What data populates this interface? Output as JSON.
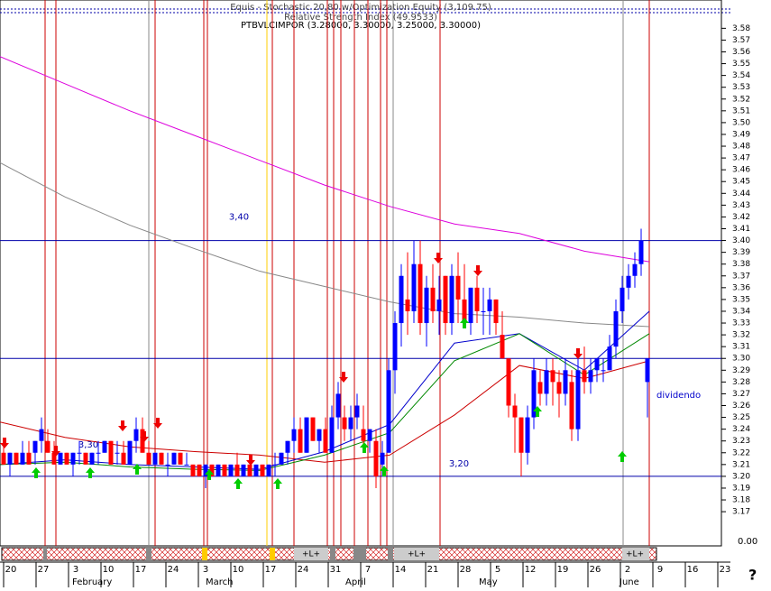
{
  "chart_data": {
    "type": "candlestick",
    "title": "Equis - Stochastic 20,80  w/Optimization Equity (3,109.75)",
    "subtitle": "Relative Strength Index (49.9533)",
    "symbol_label": "PTBVLCIMPOR (3.28000, 3.30000, 3.25000, 3.30000)",
    "ylim": [
      3.141,
      3.604
    ],
    "yticks": [
      3.58,
      3.57,
      3.56,
      3.55,
      3.54,
      3.53,
      3.52,
      3.51,
      {
        "value": 3.5,
        "label": "3.50"
      },
      3.49,
      3.48,
      3.47,
      3.46,
      3.45,
      3.44,
      3.43,
      3.42,
      3.41,
      {
        "value": 3.4,
        "label": "3.40"
      },
      3.39,
      3.38,
      3.37,
      3.36,
      3.35,
      3.34,
      3.33,
      3.32,
      3.31,
      {
        "value": 3.3,
        "label": "3.30"
      },
      3.29,
      3.28,
      3.27,
      3.26,
      3.25,
      3.24,
      3.23,
      3.22,
      3.21,
      {
        "value": 3.2,
        "label": "3.20"
      },
      3.19,
      3.18,
      3.17
    ],
    "levels": [
      {
        "value": 3.4,
        "label": "3,40"
      },
      {
        "value": 3.3,
        "label": "3,30"
      },
      {
        "value": 3.2,
        "label": "3,20"
      }
    ],
    "annotation": "dividendo",
    "indicator_label": "0.00",
    "help_label": "?",
    "signal_labels": [
      "+L+",
      "+L+",
      "+L+"
    ],
    "week_labels": [
      "20",
      "27",
      "3",
      "10",
      "17",
      "24",
      "3",
      "10",
      "17",
      "24",
      "31",
      "7",
      "14",
      "21",
      "28",
      "5",
      "12",
      "19",
      "26",
      "2",
      "9",
      "16",
      "23"
    ],
    "months": [
      "February",
      "March",
      "April",
      "May",
      "June"
    ],
    "up_color": "#0000ff",
    "down_color": "#ff0000",
    "ohlc": [
      [
        3.22,
        3.23,
        3.21,
        3.21
      ],
      [
        3.21,
        3.22,
        3.2,
        3.22
      ],
      [
        3.22,
        3.22,
        3.21,
        3.21
      ],
      [
        3.21,
        3.23,
        3.21,
        3.22
      ],
      [
        3.22,
        3.23,
        3.21,
        3.21
      ],
      [
        3.22,
        3.23,
        3.21,
        3.23
      ],
      [
        3.23,
        3.25,
        3.22,
        3.24
      ],
      [
        3.23,
        3.24,
        3.22,
        3.22
      ],
      [
        3.22,
        3.23,
        3.21,
        3.21
      ],
      [
        3.21,
        3.22,
        3.21,
        3.22
      ],
      [
        3.22,
        3.22,
        3.21,
        3.21
      ],
      [
        3.21,
        3.22,
        3.2,
        3.22
      ],
      [
        3.22,
        3.23,
        3.21,
        3.22
      ],
      [
        3.22,
        3.22,
        3.21,
        3.21
      ],
      [
        3.21,
        3.22,
        3.21,
        3.22
      ],
      [
        3.22,
        3.23,
        3.21,
        3.22
      ],
      [
        3.22,
        3.23,
        3.22,
        3.23
      ],
      [
        3.23,
        3.23,
        3.21,
        3.21
      ],
      [
        3.22,
        3.23,
        3.21,
        3.22
      ],
      [
        3.22,
        3.23,
        3.21,
        3.21
      ],
      [
        3.21,
        3.23,
        3.21,
        3.23
      ],
      [
        3.23,
        3.25,
        3.22,
        3.24
      ],
      [
        3.24,
        3.25,
        3.22,
        3.22
      ],
      [
        3.22,
        3.23,
        3.21,
        3.21
      ],
      [
        3.21,
        3.22,
        3.21,
        3.22
      ],
      [
        3.22,
        3.22,
        3.21,
        3.21
      ],
      [
        3.21,
        3.22,
        3.2,
        3.21
      ],
      [
        3.21,
        3.22,
        3.21,
        3.22
      ],
      [
        3.22,
        3.22,
        3.21,
        3.21
      ],
      [
        3.21,
        3.22,
        3.21,
        3.21
      ],
      [
        3.21,
        3.21,
        3.2,
        3.2
      ],
      [
        3.21,
        3.21,
        3.2,
        3.2
      ],
      [
        3.2,
        3.21,
        3.19,
        3.21
      ],
      [
        3.21,
        3.21,
        3.2,
        3.2
      ],
      [
        3.2,
        3.21,
        3.2,
        3.21
      ],
      [
        3.21,
        3.21,
        3.2,
        3.2
      ],
      [
        3.2,
        3.21,
        3.2,
        3.21
      ],
      [
        3.21,
        3.22,
        3.2,
        3.2
      ],
      [
        3.2,
        3.21,
        3.2,
        3.21
      ],
      [
        3.21,
        3.21,
        3.2,
        3.2
      ],
      [
        3.2,
        3.21,
        3.2,
        3.21
      ],
      [
        3.21,
        3.21,
        3.2,
        3.2
      ],
      [
        3.2,
        3.21,
        3.2,
        3.21
      ],
      [
        3.21,
        3.22,
        3.2,
        3.21
      ],
      [
        3.21,
        3.22,
        3.21,
        3.22
      ],
      [
        3.22,
        3.23,
        3.21,
        3.23
      ],
      [
        3.23,
        3.25,
        3.22,
        3.24
      ],
      [
        3.24,
        3.25,
        3.22,
        3.22
      ],
      [
        3.22,
        3.25,
        3.22,
        3.25
      ],
      [
        3.25,
        3.25,
        3.23,
        3.23
      ],
      [
        3.23,
        3.24,
        3.22,
        3.24
      ],
      [
        3.24,
        3.25,
        3.22,
        3.22
      ],
      [
        3.22,
        3.26,
        3.22,
        3.25
      ],
      [
        3.25,
        3.28,
        3.24,
        3.27
      ],
      [
        3.25,
        3.26,
        3.23,
        3.24
      ],
      [
        3.24,
        3.26,
        3.23,
        3.25
      ],
      [
        3.25,
        3.27,
        3.24,
        3.26
      ],
      [
        3.24,
        3.26,
        3.22,
        3.23
      ],
      [
        3.23,
        3.24,
        3.22,
        3.24
      ],
      [
        3.23,
        3.24,
        3.19,
        3.2
      ],
      [
        3.21,
        3.23,
        3.2,
        3.22
      ],
      [
        3.22,
        3.3,
        3.22,
        3.29
      ],
      [
        3.29,
        3.34,
        3.27,
        3.33
      ],
      [
        3.33,
        3.38,
        3.31,
        3.37
      ],
      [
        3.35,
        3.39,
        3.32,
        3.34
      ],
      [
        3.34,
        3.4,
        3.33,
        3.38
      ],
      [
        3.38,
        3.4,
        3.32,
        3.33
      ],
      [
        3.33,
        3.37,
        3.31,
        3.36
      ],
      [
        3.36,
        3.38,
        3.33,
        3.34
      ],
      [
        3.34,
        3.37,
        3.32,
        3.35
      ],
      [
        3.37,
        3.37,
        3.32,
        3.33
      ],
      [
        3.33,
        3.38,
        3.32,
        3.37
      ],
      [
        3.37,
        3.39,
        3.33,
        3.35
      ],
      [
        3.35,
        3.38,
        3.33,
        3.33
      ],
      [
        3.33,
        3.36,
        3.32,
        3.36
      ],
      [
        3.36,
        3.37,
        3.33,
        3.34
      ],
      [
        3.34,
        3.36,
        3.32,
        3.34
      ],
      [
        3.34,
        3.36,
        3.32,
        3.35
      ],
      [
        3.35,
        3.35,
        3.32,
        3.33
      ],
      [
        3.32,
        3.34,
        3.3,
        3.3
      ],
      [
        3.3,
        3.3,
        3.25,
        3.26
      ],
      [
        3.26,
        3.27,
        3.22,
        3.25
      ],
      [
        3.25,
        3.25,
        3.2,
        3.22
      ],
      [
        3.22,
        3.26,
        3.21,
        3.25
      ],
      [
        3.25,
        3.3,
        3.24,
        3.29
      ],
      [
        3.28,
        3.29,
        3.26,
        3.27
      ],
      [
        3.27,
        3.3,
        3.26,
        3.29
      ],
      [
        3.29,
        3.3,
        3.26,
        3.28
      ],
      [
        3.28,
        3.29,
        3.25,
        3.27
      ],
      [
        3.27,
        3.3,
        3.26,
        3.29
      ],
      [
        3.28,
        3.29,
        3.23,
        3.24
      ],
      [
        3.24,
        3.3,
        3.23,
        3.29
      ],
      [
        3.29,
        3.31,
        3.27,
        3.28
      ],
      [
        3.28,
        3.3,
        3.27,
        3.29
      ],
      [
        3.29,
        3.3,
        3.28,
        3.3
      ],
      [
        3.29,
        3.3,
        3.28,
        3.29
      ],
      [
        3.29,
        3.32,
        3.29,
        3.31
      ],
      [
        3.31,
        3.35,
        3.3,
        3.34
      ],
      [
        3.34,
        3.37,
        3.33,
        3.36
      ],
      [
        3.36,
        3.38,
        3.35,
        3.37
      ],
      [
        3.37,
        3.39,
        3.36,
        3.38
      ],
      [
        3.38,
        3.41,
        3.37,
        3.4
      ],
      [
        3.28,
        3.3,
        3.25,
        3.3
      ]
    ],
    "series": [
      {
        "color": "#dd00dd",
        "values": [
          3.556,
          3.533,
          3.51,
          3.489,
          3.468,
          3.447,
          3.429,
          3.414,
          3.406,
          3.391,
          3.382
        ]
      },
      {
        "color": "#888888",
        "values": [
          3.466,
          3.437,
          3.413,
          3.393,
          3.374,
          3.361,
          3.348,
          3.338,
          3.335,
          3.33,
          3.327
        ]
      },
      {
        "color": "#cc0000",
        "values": [
          3.246,
          3.233,
          3.225,
          3.221,
          3.218,
          3.212,
          3.218,
          3.252,
          3.294,
          3.283,
          3.298
        ]
      },
      {
        "color": "#0000cc",
        "values": [
          3.21,
          3.214,
          3.21,
          3.208,
          3.206,
          3.221,
          3.244,
          3.313,
          3.321,
          3.29,
          3.34
        ]
      },
      {
        "color": "#008800",
        "values": [
          3.21,
          3.212,
          3.208,
          3.206,
          3.205,
          3.218,
          3.237,
          3.298,
          3.321,
          3.286,
          3.321
        ]
      }
    ]
  }
}
